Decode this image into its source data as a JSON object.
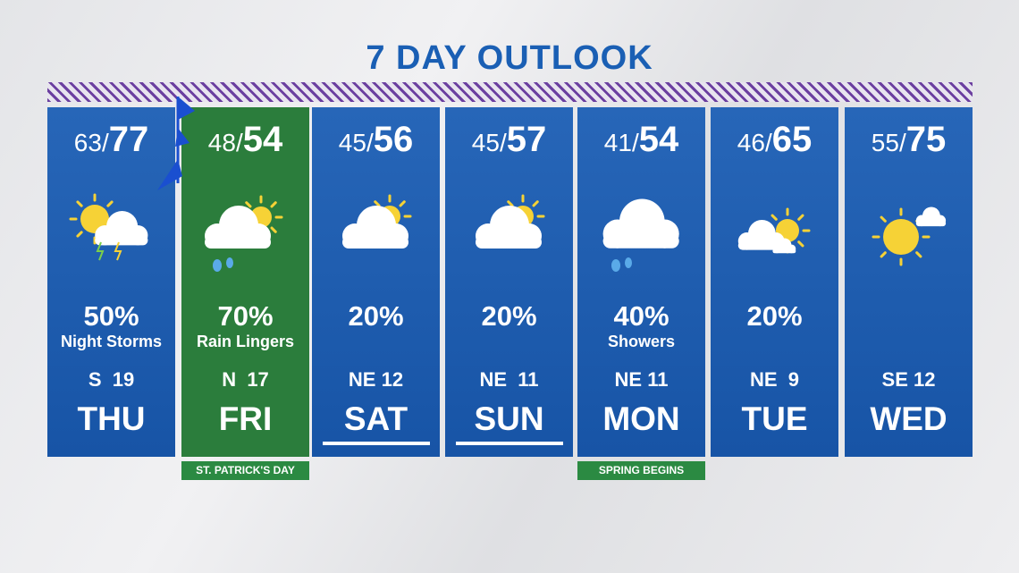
{
  "title": "7 DAY OUTLOOK",
  "days": [
    {
      "low": "63",
      "high": "77",
      "precip": "50%",
      "description": "Night Storms",
      "wind": "S  19",
      "day": "THU"
    },
    {
      "low": "48",
      "high": "54",
      "precip": "70%",
      "description": "Rain Lingers",
      "wind": "N  17",
      "day": "FRI",
      "note": "ST. PATRICK'S DAY"
    },
    {
      "low": "45",
      "high": "56",
      "precip": "20%",
      "wind": "NE 12",
      "day": "SAT"
    },
    {
      "low": "45",
      "high": "57",
      "precip": "20%",
      "wind": "NE  11",
      "day": "SUN"
    },
    {
      "low": "41",
      "high": "54",
      "precip": "40%",
      "description": "Showers",
      "wind": "NE 11",
      "day": "MON",
      "note": "SPRING BEGINS"
    },
    {
      "low": "46",
      "high": "65",
      "precip": "20%",
      "wind": "NE  9",
      "day": "TUE"
    },
    {
      "low": "55",
      "high": "75",
      "precip": "",
      "wind": "SE 12",
      "day": "WED"
    }
  ]
}
